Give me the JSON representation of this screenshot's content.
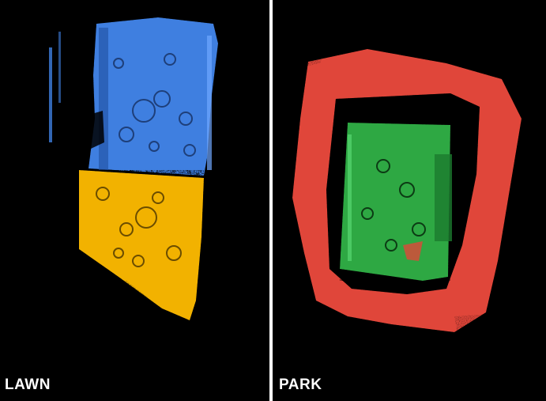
{
  "panels": [
    {
      "label": "LAWN",
      "regions": [
        {
          "name": "upper-lawn",
          "color": "#3f7fe0"
        },
        {
          "name": "lower-lawn",
          "color": "#f2b200"
        }
      ]
    },
    {
      "label": "PARK",
      "regions": [
        {
          "name": "outer-ring",
          "color": "#e0463a"
        },
        {
          "name": "inner-park",
          "color": "#2ea843"
        }
      ]
    }
  ],
  "colors": {
    "background": "#000000",
    "divider": "#ffffff"
  }
}
